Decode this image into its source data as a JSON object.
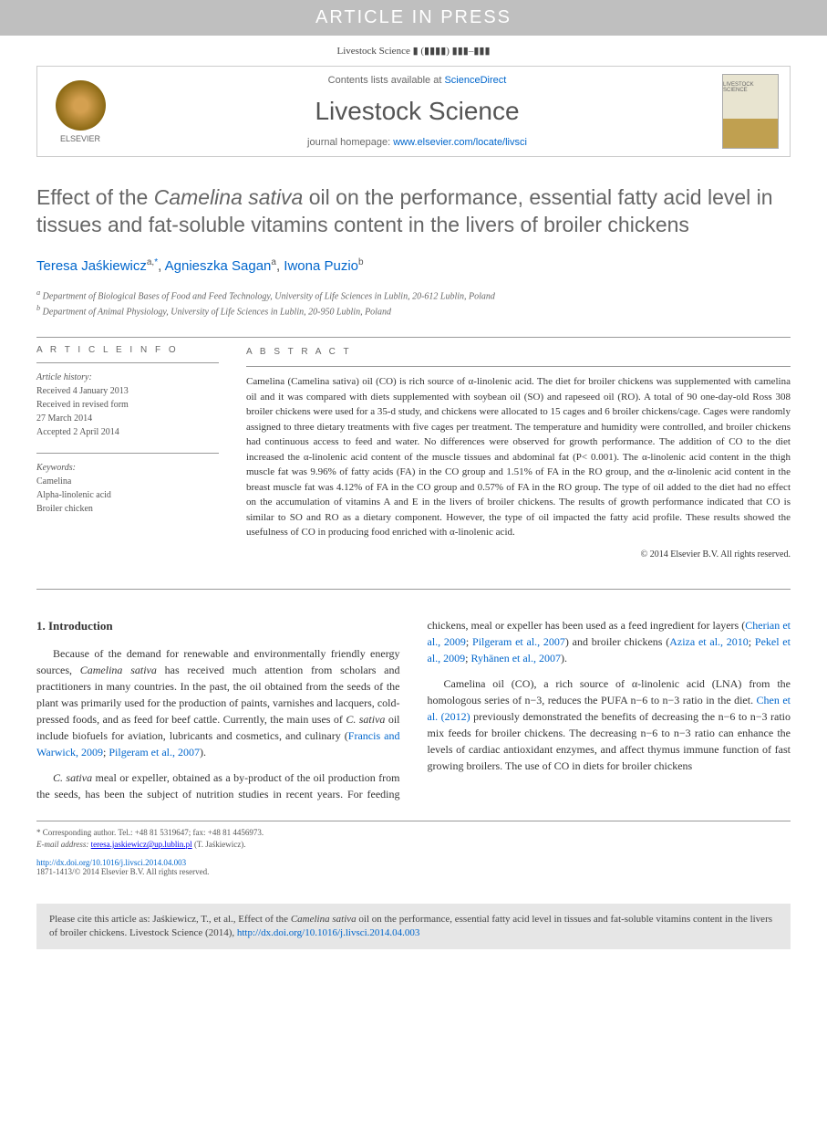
{
  "banner": "ARTICLE IN PRESS",
  "journal_ref": "Livestock Science ▮ (▮▮▮▮) ▮▮▮–▮▮▮",
  "header": {
    "contents_prefix": "Contents lists available at ",
    "contents_link": "ScienceDirect",
    "journal_name": "Livestock Science",
    "homepage_prefix": "journal homepage: ",
    "homepage_link": "www.elsevier.com/locate/livsci",
    "elsevier_label": "ELSEVIER",
    "cover_label": "LIVESTOCK SCIENCE"
  },
  "title_parts": {
    "pre": "Effect of the ",
    "italic": "Camelina sativa",
    "post": " oil on the performance, essential fatty acid level in tissues and fat-soluble vitamins content in the livers of broiler chickens"
  },
  "authors": [
    {
      "name": "Teresa Jaśkiewicz",
      "affil": "a,",
      "corr": "*"
    },
    {
      "name": "Agnieszka Sagan",
      "affil": "a",
      "corr": ""
    },
    {
      "name": "Iwona Puzio",
      "affil": "b",
      "corr": ""
    }
  ],
  "affiliations": [
    {
      "key": "a",
      "text": "Department of Biological Bases of Food and Feed Technology, University of Life Sciences in Lublin, 20-612 Lublin, Poland"
    },
    {
      "key": "b",
      "text": "Department of Animal Physiology, University of Life Sciences in Lublin, 20-950 Lublin, Poland"
    }
  ],
  "info": {
    "article_info_label": "A R T I C L E  I N F O",
    "abstract_label": "A B S T R A C T",
    "history_title": "Article history:",
    "history": [
      "Received 4 January 2013",
      "Received in revised form",
      "27 March 2014",
      "Accepted 2 April 2014"
    ],
    "keywords_title": "Keywords:",
    "keywords": [
      "Camelina",
      "Alpha-linolenic acid",
      "Broiler chicken"
    ]
  },
  "abstract": "Camelina (Camelina sativa) oil (CO) is rich source of α-linolenic acid. The diet for broiler chickens was supplemented with camelina oil and it was compared with diets supplemented with soybean oil (SO) and rapeseed oil (RO). A total of 90 one-day-old Ross 308 broiler chickens were used for a 35-d study, and chickens were allocated to 15 cages and 6 broiler chickens/cage. Cages were randomly assigned to three dietary treatments with five cages per treatment. The temperature and humidity were controlled, and broiler chickens had continuous access to feed and water. No differences were observed for growth performance. The addition of CO to the diet increased the α-linolenic acid content of the muscle tissues and abdominal fat (P< 0.001). The α-linolenic acid content in the thigh muscle fat was 9.96% of fatty acids (FA) in the CO group and 1.51% of FA in the RO group, and the α-linolenic acid content in the breast muscle fat was 4.12% of FA in the CO group and 0.57% of FA in the RO group. The type of oil added to the diet had no effect on the accumulation of vitamins A and E in the livers of broiler chickens. The results of growth performance indicated that CO is similar to SO and RO as a dietary component. However, the type of oil impacted the fatty acid profile. These results showed the usefulness of CO in producing food enriched with α-linolenic acid.",
  "abstract_copyright": "© 2014 Elsevier B.V. All rights reserved.",
  "intro": {
    "heading": "1.  Introduction",
    "p1_pre": "Because of the demand for renewable and environmentally friendly energy sources, ",
    "p1_italic1": "Camelina sativa",
    "p1_mid": " has received much attention from scholars and practitioners in many countries. In the past, the oil obtained from the seeds of the plant was primarily used for the production of paints, varnishes and lacquers, cold-pressed foods, and as feed for beef cattle. Currently, the main uses of ",
    "p1_italic2": "C. sativa",
    "p1_post": " oil include biofuels for aviation, lubricants and cosmetics, and culinary (",
    "p1_ref1": "Francis and Warwick, 2009",
    "p1_sep": "; ",
    "p1_ref2": "Pilgeram et al., 2007",
    "p1_end": ").",
    "p2_italic1": "C. sativa",
    "p2_pre": " meal or expeller, obtained as a by-product of the oil production from the seeds, has been the subject of nutrition studies in recent years. For feeding chickens, meal or expeller has been used as a feed ingredient for layers (",
    "p2_ref1": "Cherian et al., 2009",
    "p2_sep1": "; ",
    "p2_ref2": "Pilgeram et al., 2007",
    "p2_mid": ") and broiler chickens (",
    "p2_ref3": "Aziza et al., 2010",
    "p2_sep2": "; ",
    "p2_ref4": "Pekel et al., 2009",
    "p2_sep3": "; ",
    "p2_ref5": "Ryhänen et al., 2007",
    "p2_end": ").",
    "p3_pre": "Camelina oil (CO), a rich source of α-linolenic acid (LNA) from the homologous series of n−3, reduces the PUFA n−6 to n−3 ratio in the diet. ",
    "p3_ref1": "Chen et al. (2012)",
    "p3_post": " previously demonstrated the benefits of decreasing the n−6 to n−3 ratio mix feeds for broiler chickens. The decreasing n−6 to n−3 ratio can enhance the levels of cardiac antioxidant enzymes, and affect thymus immune function of fast growing broilers. The use of CO in diets for broiler chickens"
  },
  "footnote": {
    "corr": "* Corresponding author. Tel.: +48 81 5319647; fax: +48 81 4456973.",
    "email_label": "E-mail address: ",
    "email": "teresa.jaskiewicz@up.lublin.pl",
    "email_who": " (T. Jaśkiewicz)."
  },
  "doi": {
    "link": "http://dx.doi.org/10.1016/j.livsci.2014.04.003",
    "copyright": "1871-1413/© 2014 Elsevier B.V. All rights reserved."
  },
  "cite": {
    "pre": "Please cite this article as: Jaśkiewicz, T., et al., Effect of the ",
    "italic": "Camelina sativa",
    "mid": " oil on the performance, essential fatty acid level in tissues and fat-soluble vitamins content in the livers of broiler chickens. Livestock Science (2014), ",
    "link": "http://dx.doi.org/10.1016/j.livsci.2014.04.003"
  }
}
